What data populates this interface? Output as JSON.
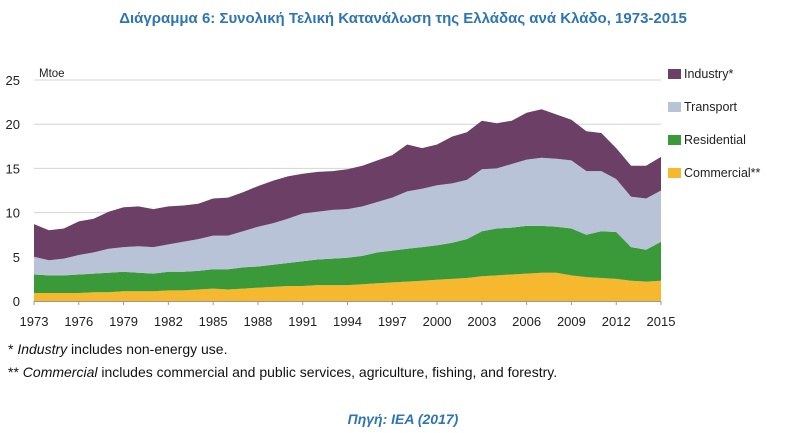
{
  "title": "Διάγραμμα 6: Συνολική Τελική Κατανάλωση της Ελλάδας ανά Κλάδο, 1973-2015",
  "notes": {
    "n1_prefix": "* ",
    "n1_italic": "Industry",
    "n1_rest": " includes non-energy use.",
    "n2_prefix": "** ",
    "n2_italic": "Commercial",
    "n2_rest": " includes commercial and public services, agriculture, fishing, and forestry."
  },
  "source": "Πηγή: IEA (2017)",
  "chart_data": {
    "type": "area",
    "stacked": true,
    "title": "",
    "xlabel": "",
    "ylabel": "Mtoe",
    "ylim": [
      0,
      25
    ],
    "yticks": [
      0,
      5,
      10,
      15,
      20,
      25
    ],
    "xticks": [
      1973,
      1976,
      1979,
      1982,
      1985,
      1988,
      1991,
      1994,
      1997,
      2000,
      2003,
      2006,
      2009,
      2012,
      2015
    ],
    "grid": "horizontal",
    "legend_position": "right",
    "x": [
      1973,
      1974,
      1975,
      1976,
      1977,
      1978,
      1979,
      1980,
      1981,
      1982,
      1983,
      1984,
      1985,
      1986,
      1987,
      1988,
      1989,
      1990,
      1991,
      1992,
      1993,
      1994,
      1995,
      1996,
      1997,
      1998,
      1999,
      2000,
      2001,
      2002,
      2003,
      2004,
      2005,
      2006,
      2007,
      2008,
      2009,
      2010,
      2011,
      2012,
      2013,
      2014,
      2015
    ],
    "series": [
      {
        "name": "Commercial**",
        "color": "#f5b82e",
        "values": [
          0.9,
          0.9,
          0.9,
          0.9,
          1.0,
          1.0,
          1.1,
          1.1,
          1.1,
          1.2,
          1.2,
          1.3,
          1.4,
          1.3,
          1.4,
          1.5,
          1.6,
          1.7,
          1.7,
          1.8,
          1.8,
          1.8,
          1.9,
          2.0,
          2.1,
          2.2,
          2.3,
          2.4,
          2.5,
          2.6,
          2.8,
          2.9,
          3.0,
          3.1,
          3.2,
          3.2,
          2.9,
          2.7,
          2.6,
          2.5,
          2.3,
          2.2,
          2.3
        ]
      },
      {
        "name": "Residential",
        "color": "#3a9a3a",
        "values": [
          2.1,
          2.0,
          2.0,
          2.1,
          2.1,
          2.2,
          2.2,
          2.1,
          2.0,
          2.1,
          2.1,
          2.1,
          2.2,
          2.3,
          2.4,
          2.4,
          2.5,
          2.6,
          2.8,
          2.9,
          3.0,
          3.1,
          3.2,
          3.5,
          3.6,
          3.7,
          3.8,
          3.9,
          4.1,
          4.4,
          5.1,
          5.3,
          5.3,
          5.4,
          5.3,
          5.2,
          5.3,
          4.8,
          5.3,
          5.3,
          3.8,
          3.6,
          4.4
        ]
      },
      {
        "name": "Transport",
        "color": "#b9c3d8",
        "values": [
          2.0,
          1.7,
          1.9,
          2.2,
          2.4,
          2.7,
          2.8,
          3.0,
          3.0,
          3.1,
          3.4,
          3.6,
          3.8,
          3.8,
          4.1,
          4.5,
          4.7,
          5.0,
          5.4,
          5.4,
          5.5,
          5.5,
          5.6,
          5.7,
          6.0,
          6.5,
          6.6,
          6.8,
          6.7,
          6.7,
          7.0,
          6.8,
          7.2,
          7.5,
          7.7,
          7.7,
          7.7,
          7.2,
          6.8,
          6.0,
          5.7,
          5.8,
          5.8
        ]
      },
      {
        "name": "Industry*",
        "color": "#6b3f66",
        "values": [
          3.7,
          3.4,
          3.4,
          3.8,
          3.8,
          4.2,
          4.5,
          4.5,
          4.3,
          4.3,
          4.1,
          4.0,
          4.2,
          4.3,
          4.4,
          4.6,
          4.8,
          4.8,
          4.5,
          4.5,
          4.4,
          4.5,
          4.6,
          4.7,
          4.8,
          5.3,
          4.6,
          4.6,
          5.3,
          5.4,
          5.5,
          5.1,
          4.9,
          5.3,
          5.5,
          5.0,
          4.6,
          4.5,
          4.3,
          3.5,
          3.5,
          3.7,
          3.8
        ]
      }
    ]
  }
}
